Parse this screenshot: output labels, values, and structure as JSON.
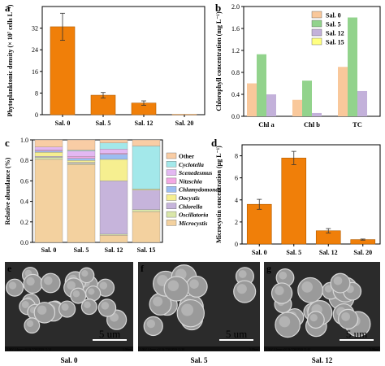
{
  "colors": {
    "orange": "#f07f09",
    "orange_light": "#f9c89b",
    "green": "#92d38c",
    "purple": "#c3b1da",
    "yellow": "#ffff80",
    "other": "#f9cda5",
    "cyclotella": "#a3e8ea",
    "scenedesmus": "#e3b8f2",
    "nitzschia": "#f3a8e3",
    "chlamydomonas": "#9bbdf1",
    "oocystis": "#f6ef90",
    "chlorella": "#c6b4db",
    "oscillatoria": "#d9e6a9",
    "microcystis": "#f3d19f"
  },
  "panels": {
    "a": {
      "letter": "a"
    },
    "b": {
      "letter": "b"
    },
    "c": {
      "letter": "c"
    },
    "d": {
      "letter": "d"
    },
    "e": {
      "letter": "e"
    },
    "f": {
      "letter": "f"
    },
    "g": {
      "letter": "g"
    }
  },
  "chart_data": [
    {
      "panel": "a",
      "type": "bar",
      "ylabel": "Phytoplanktonic density (× 10⁷ cells L⁻¹)",
      "categories": [
        "Sal. 0",
        "Sal. 5",
        "Sal. 12",
        "Sal. 20"
      ],
      "values": [
        32.5,
        7.2,
        4.3,
        0.05
      ],
      "errors": [
        5.0,
        1.0,
        0.8,
        0
      ],
      "ylim": [
        0,
        40
      ],
      "yticks": [
        0,
        8,
        16,
        24,
        32
      ]
    },
    {
      "panel": "b",
      "type": "bar",
      "ylabel": "Chlorophyll concentration (mg L⁻¹)",
      "categories": [
        "Chl a",
        "Chl b",
        "TC"
      ],
      "ylim": [
        0,
        2.0
      ],
      "yticks": [
        0.0,
        0.4,
        0.8,
        1.2,
        1.6,
        2.0
      ],
      "series": [
        {
          "name": "Sal. 0",
          "values": [
            0.6,
            0.3,
            0.9
          ]
        },
        {
          "name": "Sal. 5",
          "values": [
            1.13,
            0.65,
            1.8
          ]
        },
        {
          "name": "Sal. 12",
          "values": [
            0.4,
            0.06,
            0.46
          ]
        },
        {
          "name": "Sal. 15",
          "values": [
            0.0,
            0.0,
            0.0
          ]
        }
      ]
    },
    {
      "panel": "c",
      "type": "bar",
      "stacked": true,
      "ylabel": "Relative abundance (%)",
      "categories": [
        "Sal. 0",
        "Sal. 5",
        "Sal. 12",
        "Sal. 15"
      ],
      "ylim": [
        0,
        1.0
      ],
      "yticks": [
        0.0,
        0.2,
        0.4,
        0.6,
        0.8,
        1.0
      ],
      "legend": [
        "Other",
        "Cyclotella",
        "Scenedesmus",
        "Nitzschia",
        "Chlamydomonas",
        "Oocystis",
        "Chlorella",
        "Oscillatoria",
        "Microcystis"
      ],
      "series": [
        {
          "name": "Microcystis",
          "values": [
            0.81,
            0.76,
            0.07,
            0.3
          ]
        },
        {
          "name": "Oscillatoria",
          "values": [
            0.02,
            0.01,
            0.01,
            0.02
          ]
        },
        {
          "name": "Chlorella",
          "values": [
            0.01,
            0.01,
            0.52,
            0.19
          ]
        },
        {
          "name": "Oocystis",
          "values": [
            0.04,
            0.02,
            0.21,
            0.01
          ]
        },
        {
          "name": "Chlamydomonas",
          "values": [
            0.01,
            0.02,
            0.05,
            0.0
          ]
        },
        {
          "name": "Nitzschia",
          "values": [
            0.01,
            0.02,
            0.01,
            0.0
          ]
        },
        {
          "name": "Scenedesmus",
          "values": [
            0.03,
            0.05,
            0.04,
            0.0
          ]
        },
        {
          "name": "Cyclotella",
          "values": [
            0.0,
            0.01,
            0.06,
            0.42
          ]
        },
        {
          "name": "Other",
          "values": [
            0.07,
            0.1,
            0.03,
            0.06
          ]
        }
      ]
    },
    {
      "panel": "d",
      "type": "bar",
      "ylabel": "Microcystin concentration (µg L⁻¹)",
      "categories": [
        "Sal. 0",
        "Sal. 5",
        "Sal. 12",
        "Sal. 20"
      ],
      "values": [
        3.6,
        7.8,
        1.2,
        0.4
      ],
      "errors": [
        0.45,
        0.6,
        0.2,
        0.05
      ],
      "ylim": [
        0,
        9
      ],
      "yticks": [
        0,
        2,
        4,
        6,
        8
      ]
    }
  ],
  "sem_images": [
    {
      "panel": "e",
      "caption": "Sal. 0",
      "scale": "5 um",
      "info": "3.0kV 4.4mm x10.0k 7/30/2019 11:34",
      "scalebar": "5.00um"
    },
    {
      "panel": "f",
      "caption": "Sal. 5",
      "scale": "5 um",
      "info": "3.0kV 4.4mm x10.0k 7/30/2019 11:38",
      "scalebar": "5.00um"
    },
    {
      "panel": "g",
      "caption": "Sal. 12",
      "scale": "5 um",
      "info": "3.0kV 4.2mm x10.0k 7/30/2019 11:44",
      "scalebar": "5.00um"
    }
  ]
}
